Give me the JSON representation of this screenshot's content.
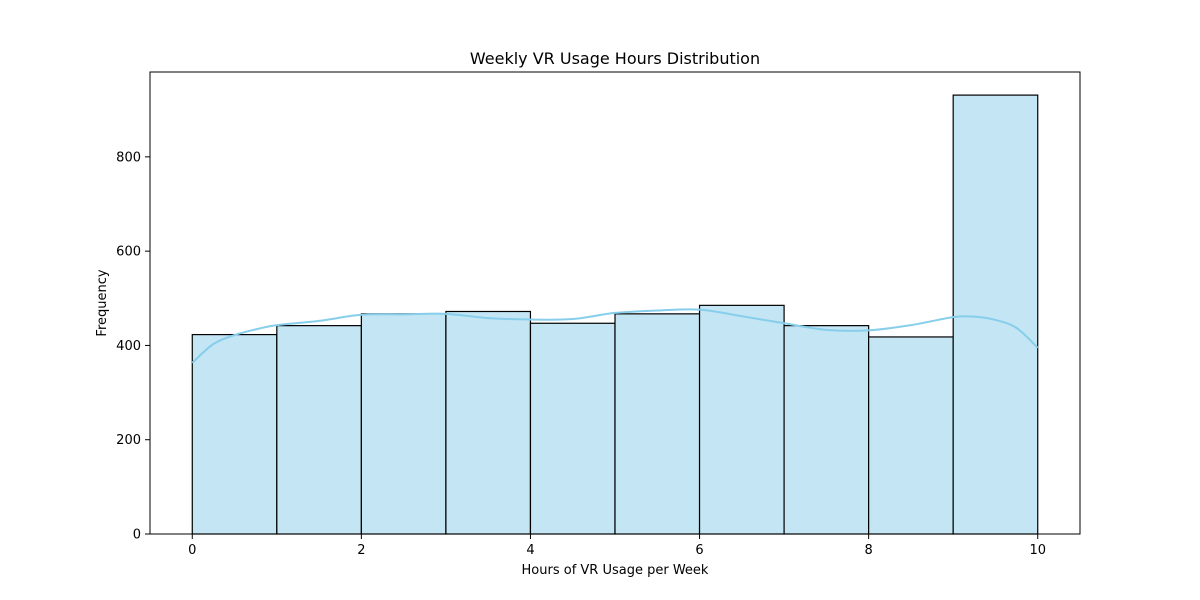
{
  "chart_data": {
    "type": "bar",
    "title": "Weekly VR Usage Hours Distribution",
    "xlabel": "Hours of VR Usage per Week",
    "ylabel": "Frequency",
    "xlim": [
      -0.5,
      10.5
    ],
    "ylim": [
      0,
      980
    ],
    "x_ticks": [
      0,
      2,
      4,
      6,
      8,
      10
    ],
    "y_ticks": [
      0,
      200,
      400,
      600,
      800
    ],
    "bins": [
      {
        "start": 0,
        "end": 1,
        "value": 423
      },
      {
        "start": 1,
        "end": 2,
        "value": 442
      },
      {
        "start": 2,
        "end": 3,
        "value": 467
      },
      {
        "start": 3,
        "end": 4,
        "value": 472
      },
      {
        "start": 4,
        "end": 5,
        "value": 447
      },
      {
        "start": 5,
        "end": 6,
        "value": 467
      },
      {
        "start": 6,
        "end": 7,
        "value": 485
      },
      {
        "start": 7,
        "end": 8,
        "value": 442
      },
      {
        "start": 8,
        "end": 9,
        "value": 418
      },
      {
        "start": 9,
        "end": 10,
        "value": 931
      }
    ],
    "kde_curve": {
      "x": [
        0,
        0.25,
        0.5,
        0.75,
        1,
        1.5,
        2,
        2.5,
        3,
        3.5,
        4,
        4.5,
        5,
        5.5,
        6,
        6.5,
        7,
        7.5,
        8,
        8.5,
        9,
        9.25,
        9.5,
        9.75,
        10
      ],
      "y": [
        363,
        403,
        422,
        434,
        443,
        452,
        465,
        466,
        467,
        458,
        455,
        456,
        469,
        474,
        476,
        462,
        447,
        433,
        432,
        443,
        460,
        461,
        454,
        437,
        395
      ]
    },
    "grid": false,
    "legend": "none",
    "colors": {
      "bar_fill": "#c3e5f4",
      "bar_edge": "#000000",
      "kde_line": "#87ceeb",
      "axes": "#000000"
    }
  }
}
